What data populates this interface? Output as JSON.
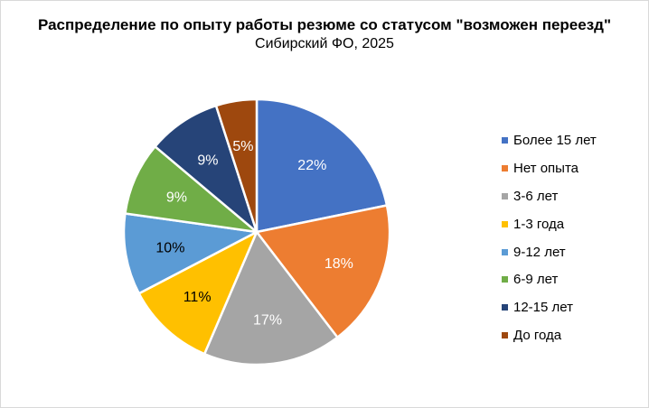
{
  "chart_data": {
    "type": "pie",
    "title": "Распределение по опыту работы резюме со статусом \"возможен переезд\"",
    "subtitle": "Сибирский ФО, 2025",
    "legend_position": "right",
    "slices": [
      {
        "label": "Более 15 лет",
        "value": 22,
        "display": "22%",
        "color": "#4472C4",
        "text_color": "#ffffff"
      },
      {
        "label": "Нет опыта",
        "value": 18,
        "display": "18%",
        "color": "#ED7D31",
        "text_color": "#ffffff"
      },
      {
        "label": "3-6 лет",
        "value": 17,
        "display": "17%",
        "color": "#A5A5A5",
        "text_color": "#ffffff"
      },
      {
        "label": "1-3 года",
        "value": 11,
        "display": "11%",
        "color": "#FFC000",
        "text_color": "#000000"
      },
      {
        "label": "9-12 лет",
        "value": 10,
        "display": "10%",
        "color": "#5B9BD5",
        "text_color": "#000000"
      },
      {
        "label": "6-9 лет",
        "value": 9,
        "display": "9%",
        "color": "#70AD47",
        "text_color": "#ffffff"
      },
      {
        "label": "12-15 лет",
        "value": 9,
        "display": "9%",
        "color": "#264478",
        "text_color": "#ffffff"
      },
      {
        "label": "До года",
        "value": 5,
        "display": "5%",
        "color": "#9E480E",
        "text_color": "#ffffff"
      }
    ]
  }
}
